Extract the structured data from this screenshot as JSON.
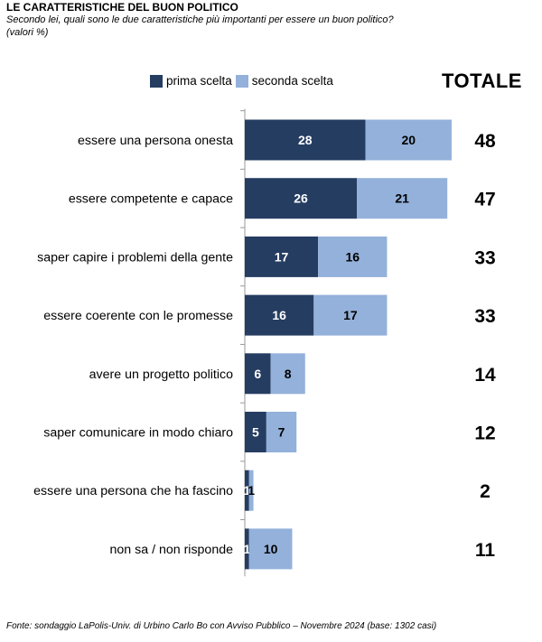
{
  "title": "LE CARATTERISTICHE DEL BUON POLITICO",
  "subtitle": "Secondo lei, quali sono le due caratteristiche più importanti per essere un buon politico?",
  "unit_note": "(valori %)",
  "totale_header": "TOTALE",
  "footer": "Fonte: sondaggio LaPolis-Univ. di Urbino Carlo Bo con Avviso Pubblico – Novembre 2024 (base: 1302 casi)",
  "colors": {
    "prima": "#263d62",
    "seconda": "#93b1da",
    "axis": "#9a9a9a"
  },
  "chart_data": {
    "type": "bar",
    "orientation": "horizontal",
    "stacked": true,
    "categories": [
      "essere una persona onesta",
      "essere competente e capace",
      "saper capire i problemi della gente",
      "essere coerente con le promesse",
      "avere un progetto politico",
      "saper comunicare in modo chiaro",
      "essere una persona che ha fascino",
      "non sa / non risponde"
    ],
    "series": [
      {
        "name": "prima scelta",
        "values": [
          28,
          26,
          17,
          16,
          6,
          5,
          1,
          1
        ]
      },
      {
        "name": "seconda scelta",
        "values": [
          20,
          21,
          16,
          17,
          8,
          7,
          1,
          10
        ]
      }
    ],
    "totals": [
      48,
      47,
      33,
      33,
      14,
      12,
      2,
      11
    ],
    "legend_position": "top",
    "grid": false
  }
}
